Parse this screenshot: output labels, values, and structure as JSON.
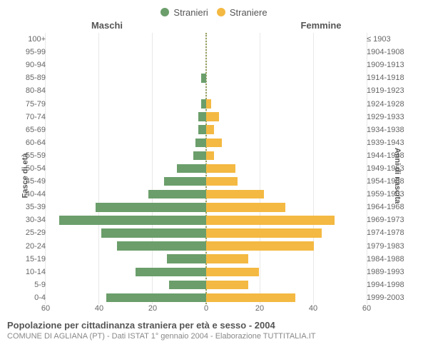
{
  "legend": {
    "male": {
      "label": "Stranieri",
      "color": "#6b9e6b"
    },
    "female": {
      "label": "Straniere",
      "color": "#f4b942"
    }
  },
  "headers": {
    "left": "Maschi",
    "right": "Femmine"
  },
  "axes": {
    "left_title": "Fasce di età",
    "right_title": "Anni di nascita",
    "x_max": 60,
    "x_ticks_left": [
      60,
      40,
      20,
      0
    ],
    "x_ticks_right": [
      0,
      20,
      40,
      60
    ],
    "grid_color": "#e8e8e8",
    "center_line_color": "#97a05a"
  },
  "colors": {
    "background": "#ffffff",
    "text": "#555555",
    "tick_text": "#666666",
    "footer_sub": "#888888"
  },
  "chart": {
    "type": "population-pyramid",
    "rows": [
      {
        "age": "100+",
        "birth": "≤ 1903",
        "male": 0,
        "female": 0
      },
      {
        "age": "95-99",
        "birth": "1904-1908",
        "male": 0,
        "female": 0
      },
      {
        "age": "90-94",
        "birth": "1909-1913",
        "male": 0,
        "female": 0
      },
      {
        "age": "85-89",
        "birth": "1914-1918",
        "male": 2,
        "female": 0
      },
      {
        "age": "80-84",
        "birth": "1919-1923",
        "male": 0,
        "female": 0
      },
      {
        "age": "75-79",
        "birth": "1924-1928",
        "male": 2,
        "female": 2
      },
      {
        "age": "70-74",
        "birth": "1929-1933",
        "male": 3,
        "female": 5
      },
      {
        "age": "65-69",
        "birth": "1934-1938",
        "male": 3,
        "female": 3
      },
      {
        "age": "60-64",
        "birth": "1939-1943",
        "male": 4,
        "female": 6
      },
      {
        "age": "55-59",
        "birth": "1944-1948",
        "male": 5,
        "female": 3
      },
      {
        "age": "50-54",
        "birth": "1949-1953",
        "male": 11,
        "female": 11
      },
      {
        "age": "45-49",
        "birth": "1954-1958",
        "male": 16,
        "female": 12
      },
      {
        "age": "40-44",
        "birth": "1959-1963",
        "male": 22,
        "female": 22
      },
      {
        "age": "35-39",
        "birth": "1964-1968",
        "male": 42,
        "female": 30
      },
      {
        "age": "30-34",
        "birth": "1969-1973",
        "male": 56,
        "female": 49
      },
      {
        "age": "25-29",
        "birth": "1974-1978",
        "male": 40,
        "female": 44
      },
      {
        "age": "20-24",
        "birth": "1979-1983",
        "male": 34,
        "female": 41
      },
      {
        "age": "15-19",
        "birth": "1984-1988",
        "male": 15,
        "female": 16
      },
      {
        "age": "10-14",
        "birth": "1989-1993",
        "male": 27,
        "female": 20
      },
      {
        "age": "5-9",
        "birth": "1994-1998",
        "male": 14,
        "female": 16
      },
      {
        "age": "0-4",
        "birth": "1999-2003",
        "male": 38,
        "female": 34
      }
    ]
  },
  "footer": {
    "title": "Popolazione per cittadinanza straniera per età e sesso - 2004",
    "subtitle": "COMUNE DI AGLIANA (PT) - Dati ISTAT 1° gennaio 2004 - Elaborazione TUTTITALIA.IT"
  }
}
